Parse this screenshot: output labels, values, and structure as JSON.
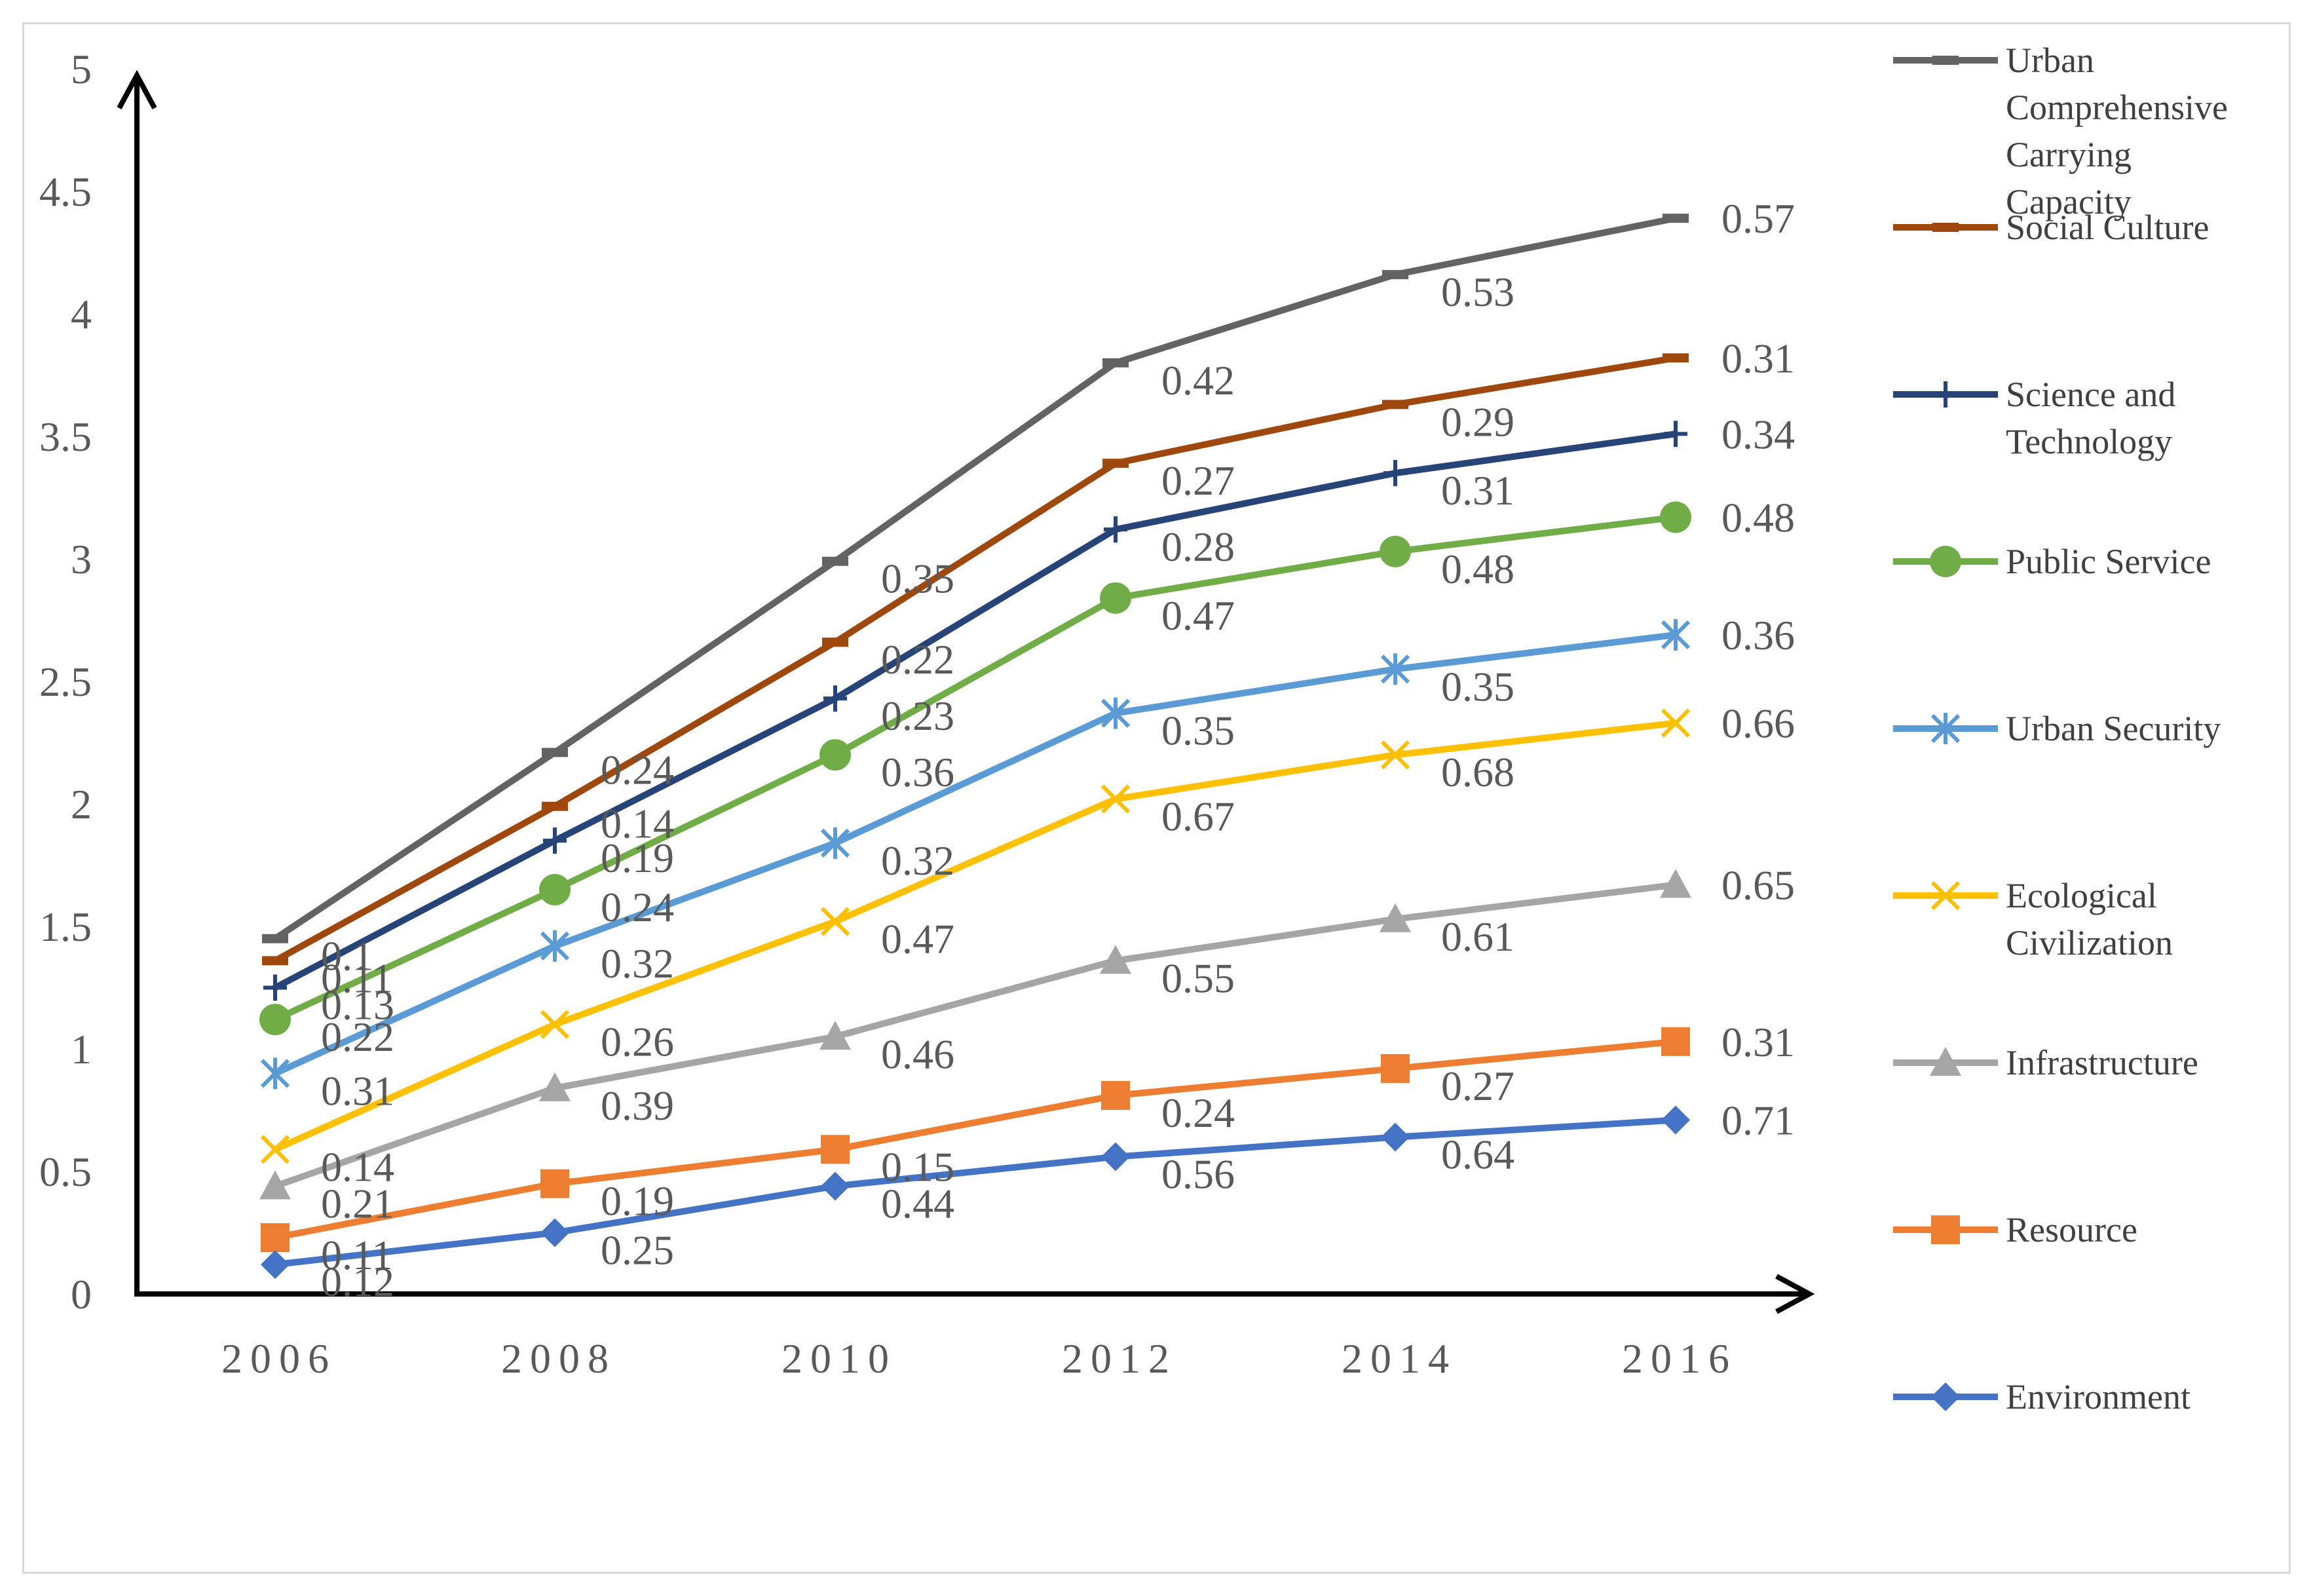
{
  "chart_data": {
    "type": "line",
    "title": "",
    "xlabel": "",
    "ylabel": "",
    "categories": [
      "2006",
      "2008",
      "2010",
      "2012",
      "2014",
      "2016"
    ],
    "y_ticks": [
      "0",
      "0.5",
      "1",
      "1.5",
      "2",
      "2.5",
      "3",
      "3.5",
      "4",
      "4.5",
      "5"
    ],
    "ylim": [
      0,
      5
    ],
    "grid": false,
    "legend_position": "right",
    "series": [
      {
        "name": "Urban Comprehensive Carrying Capacity",
        "color": "#636363",
        "marker": "dash",
        "values": [
          1.45,
          2.21,
          2.99,
          3.8,
          4.16,
          4.39
        ],
        "labels": [
          "0.1",
          "0.24",
          "0.35",
          "0.42",
          "0.53",
          "0.57"
        ]
      },
      {
        "name": "Social Culture",
        "color": "#9e480e",
        "marker": "dash",
        "values": [
          1.36,
          1.99,
          2.66,
          3.39,
          3.63,
          3.82
        ],
        "labels": [
          "0.11",
          "0.14",
          "0.22",
          "0.27",
          "0.29",
          "0.31"
        ]
      },
      {
        "name": "Science and Technology",
        "color": "#264478",
        "marker": "plus",
        "values": [
          1.25,
          1.85,
          2.43,
          3.12,
          3.35,
          3.51
        ],
        "labels": [
          "0.13",
          "0.19",
          "0.23",
          "0.28",
          "0.31",
          "0.34"
        ]
      },
      {
        "name": "Public Service",
        "color": "#70ad47",
        "marker": "circle",
        "values": [
          1.12,
          1.65,
          2.2,
          2.84,
          3.03,
          3.17
        ],
        "labels": [
          "0.22",
          "0.24",
          "0.36",
          "0.47",
          "0.48",
          "0.48"
        ]
      },
      {
        "name": "Urban Security",
        "color": "#5b9bd5",
        "marker": "star",
        "values": [
          0.9,
          1.42,
          1.84,
          2.37,
          2.55,
          2.69
        ],
        "labels": [
          "0.31",
          "0.32",
          "0.32",
          "0.35",
          "0.35",
          "0.36"
        ]
      },
      {
        "name": "Ecological Civilization",
        "color": "#ffc000",
        "marker": "x",
        "values": [
          0.59,
          1.1,
          1.52,
          2.02,
          2.2,
          2.33
        ],
        "labels": [
          "0.14",
          "0.26",
          "0.47",
          "0.67",
          "0.68",
          "0.66"
        ]
      },
      {
        "name": "Infrastructure",
        "color": "#a5a5a5",
        "marker": "triangle",
        "values": [
          0.44,
          0.84,
          1.05,
          1.36,
          1.53,
          1.67
        ],
        "labels": [
          "0.21",
          "0.39",
          "0.46",
          "0.55",
          "0.61",
          "0.65"
        ]
      },
      {
        "name": "Resource",
        "color": "#ed7d31",
        "marker": "square",
        "values": [
          0.23,
          0.45,
          0.59,
          0.81,
          0.92,
          1.03
        ],
        "labels": [
          "0.11",
          "0.19",
          "0.15",
          "0.24",
          "0.27",
          "0.31"
        ]
      },
      {
        "name": "Environment",
        "color": "#4472c4",
        "marker": "diamond",
        "values": [
          0.12,
          0.25,
          0.44,
          0.56,
          0.64,
          0.71
        ],
        "labels": [
          "0.12",
          "0.25",
          "0.44",
          "0.56",
          "0.64",
          "0.71"
        ]
      }
    ]
  }
}
